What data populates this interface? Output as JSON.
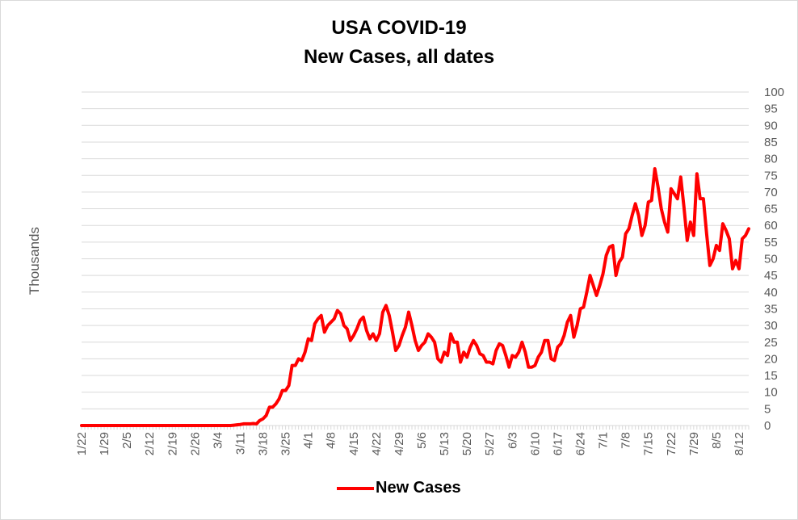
{
  "chart_data": {
    "type": "line",
    "title": "USA COVID-19",
    "subtitle": "New Cases, all dates",
    "ylabel": "Thousands",
    "ylim": [
      0,
      100
    ],
    "y_ticks": [
      "0",
      "5",
      "10",
      "15",
      "20",
      "25",
      "30",
      "35",
      "40",
      "45",
      "50",
      "55",
      "60",
      "65",
      "70",
      "75",
      "80",
      "85",
      "90",
      "95",
      "100"
    ],
    "x_tick_labels": [
      "1/22",
      "1/29",
      "2/5",
      "2/12",
      "2/19",
      "2/26",
      "3/4",
      "3/11",
      "3/18",
      "3/25",
      "4/1",
      "4/8",
      "4/15",
      "4/22",
      "4/29",
      "5/6",
      "5/13",
      "5/20",
      "5/27",
      "6/3",
      "6/10",
      "6/17",
      "6/24",
      "7/1",
      "7/8",
      "7/15",
      "7/22",
      "7/29",
      "8/5",
      "8/12"
    ],
    "legend": "bottom",
    "grid": true,
    "colors": {
      "series": "#ff0000",
      "grid": "#d9d9d9",
      "tick": "#595959"
    },
    "series": [
      {
        "name": "New Cases",
        "start": "1/22",
        "values": [
          0,
          0,
          0,
          0,
          0,
          0,
          0,
          0,
          0,
          0,
          0,
          0,
          0,
          0,
          0,
          0,
          0,
          0,
          0,
          0,
          0,
          0,
          0,
          0,
          0,
          0,
          0,
          0,
          0,
          0,
          0,
          0,
          0,
          0,
          0,
          0,
          0,
          0,
          0,
          0,
          0,
          0,
          0,
          0,
          0,
          0,
          0,
          0.1,
          0.2,
          0.3,
          0.5,
          0.5,
          0.5,
          0.6,
          0.5,
          1.5,
          2,
          3,
          5.5,
          5.5,
          6.5,
          8,
          10.5,
          10.5,
          12,
          18,
          18,
          20,
          19.5,
          22,
          26,
          25.5,
          30.5,
          32,
          33,
          28,
          30,
          31,
          32,
          34.5,
          33.5,
          30,
          29,
          25.5,
          27,
          29,
          31.5,
          32.5,
          28.5,
          26,
          27.5,
          25.5,
          27.5,
          34,
          36,
          33,
          28,
          22.5,
          24,
          27,
          29.5,
          34,
          30,
          25.5,
          22.5,
          24,
          25,
          27.5,
          26.5,
          25,
          20,
          19,
          22,
          21,
          27.5,
          25,
          25,
          19,
          22,
          20.5,
          23.5,
          25.5,
          24,
          21.5,
          21,
          19,
          19,
          18.5,
          22.5,
          24.5,
          24,
          21,
          17.5,
          21,
          20.5,
          22,
          25,
          22,
          17.5,
          17.5,
          18,
          20.5,
          22,
          25.5,
          25.5,
          20,
          19.5,
          23.5,
          24.5,
          27,
          31,
          33,
          26.5,
          30,
          35,
          35.5,
          40,
          45,
          42,
          39,
          42,
          45.5,
          51,
          53.5,
          54,
          45,
          49,
          50.5,
          57.5,
          59,
          63,
          66.5,
          63,
          57,
          60,
          67,
          67.5,
          77,
          71.5,
          65,
          61,
          58,
          71,
          69.5,
          68,
          74.5,
          65.5,
          55.5,
          61,
          57,
          75.5,
          68,
          68,
          57.5,
          48,
          50,
          54,
          52.5,
          60.5,
          58.5,
          56,
          47,
          49.5,
          47,
          56,
          57,
          59
        ]
      }
    ]
  }
}
